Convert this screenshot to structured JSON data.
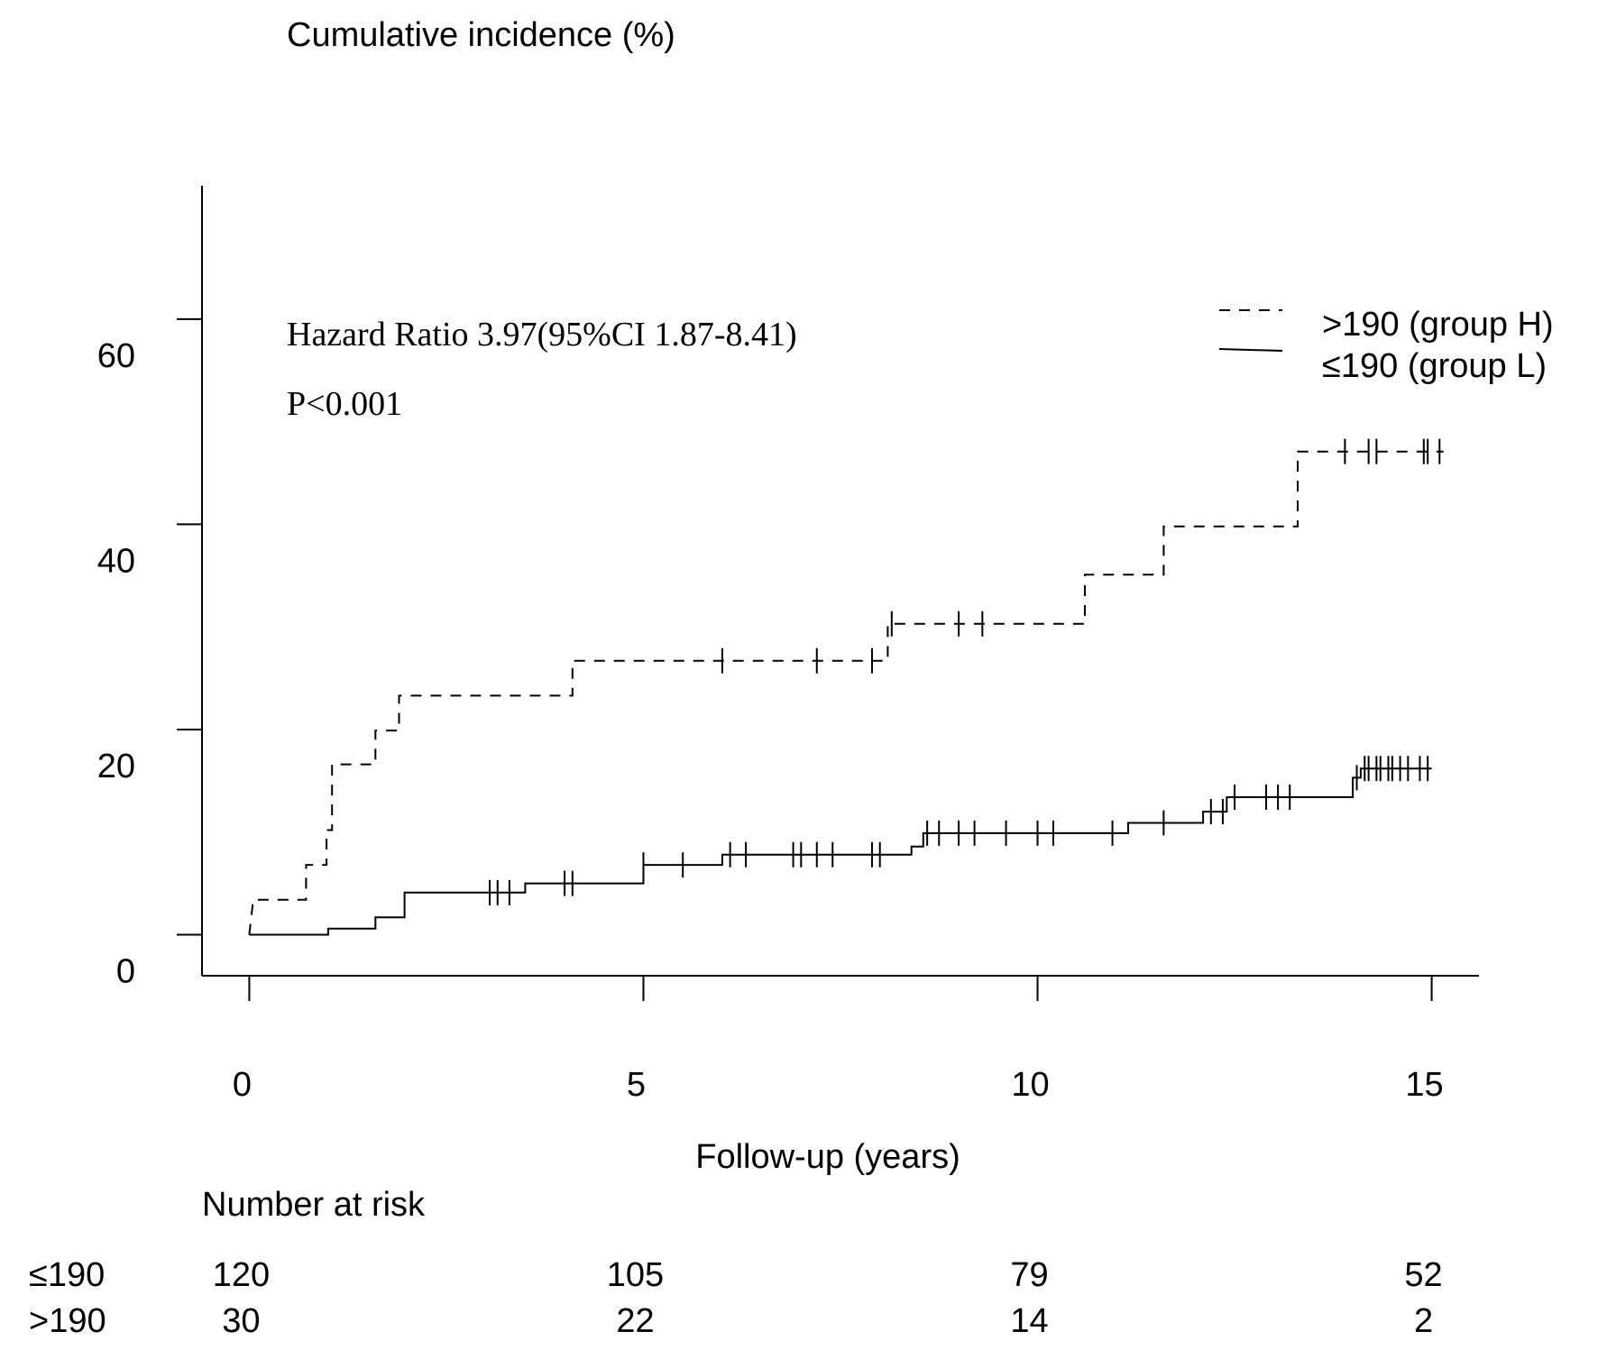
{
  "chart_data": {
    "type": "line",
    "subtype": "kaplan-meier cumulative incidence (step)",
    "ylabel": "Cumulative incidence (%)",
    "xlabel": "Follow-up (years)",
    "x_ticks": [
      "0",
      "5",
      "10",
      "15"
    ],
    "y_ticks": [
      "0",
      "20",
      "40",
      "60"
    ],
    "xlim": [
      -0.6,
      15.6
    ],
    "ylim": [
      -4,
      73
    ],
    "grid": false,
    "legend_position": "top-right",
    "annotations": {
      "hazard_ratio": "Hazard Ratio 3.97(95%CI 1.87-8.41)",
      "p_value": "P<0.001"
    },
    "series": [
      {
        "name": ">190 (group H)",
        "line_style": "dashed",
        "color": "#000000",
        "steps": [
          [
            0,
            0
          ],
          [
            0.05,
            3.4
          ],
          [
            0.72,
            3.4
          ],
          [
            0.72,
            6.8
          ],
          [
            0.98,
            6.8
          ],
          [
            0.98,
            10.2
          ],
          [
            1.05,
            10.2
          ],
          [
            1.05,
            16.6
          ],
          [
            1.6,
            16.6
          ],
          [
            1.6,
            19.9
          ],
          [
            1.9,
            19.9
          ],
          [
            1.9,
            23.3
          ],
          [
            4.1,
            23.3
          ],
          [
            4.1,
            26.7
          ],
          [
            8.1,
            26.7
          ],
          [
            8.1,
            30.3
          ],
          [
            10.6,
            30.3
          ],
          [
            10.6,
            35.1
          ],
          [
            11.6,
            35.1
          ],
          [
            11.6,
            39.8
          ],
          [
            13.3,
            39.8
          ],
          [
            13.3,
            47.1
          ],
          [
            15.15,
            47.1
          ]
        ],
        "censor_times": [
          6.0,
          7.2,
          7.9,
          8.15,
          9.0,
          9.3,
          13.9,
          14.2,
          14.3,
          14.9,
          14.95,
          15.1
        ]
      },
      {
        "name": "≤190 (group L)",
        "line_style": "solid",
        "color": "#000000",
        "steps": [
          [
            0,
            0
          ],
          [
            1.0,
            0
          ],
          [
            1.0,
            0.6
          ],
          [
            1.6,
            0.6
          ],
          [
            1.6,
            1.7
          ],
          [
            1.97,
            1.7
          ],
          [
            1.97,
            4.1
          ],
          [
            3.5,
            4.1
          ],
          [
            3.5,
            5.0
          ],
          [
            5.0,
            5.0
          ],
          [
            5.0,
            6.8
          ],
          [
            6.0,
            6.8
          ],
          [
            6.0,
            7.8
          ],
          [
            8.4,
            7.8
          ],
          [
            8.4,
            8.6
          ],
          [
            8.55,
            8.6
          ],
          [
            8.55,
            9.9
          ],
          [
            11.15,
            9.9
          ],
          [
            11.15,
            10.9
          ],
          [
            12.1,
            10.9
          ],
          [
            12.1,
            12.0
          ],
          [
            12.4,
            12.0
          ],
          [
            12.4,
            13.4
          ],
          [
            14.0,
            13.4
          ],
          [
            14.0,
            15.3
          ],
          [
            14.1,
            15.3
          ],
          [
            14.1,
            16.2
          ],
          [
            15.0,
            16.2
          ]
        ],
        "censor_times": [
          3.05,
          3.15,
          3.3,
          4.0,
          4.1,
          5.0,
          5.5,
          6.1,
          6.3,
          6.9,
          7.0,
          7.2,
          7.4,
          7.9,
          8.0,
          8.6,
          8.75,
          9.0,
          9.2,
          9.6,
          10.0,
          10.2,
          10.95,
          11.6,
          12.2,
          12.35,
          12.5,
          12.9,
          13.05,
          13.2,
          14.05,
          14.15,
          14.2,
          14.3,
          14.35,
          14.45,
          14.5,
          14.6,
          14.7,
          14.85,
          14.95
        ]
      }
    ],
    "risk_table": {
      "title": "Number at risk",
      "rows": [
        {
          "label": "≤190",
          "values": [
            "120",
            "105",
            "79",
            "52"
          ]
        },
        {
          "label": ">190",
          "values": [
            "30",
            "22",
            "14",
            "2"
          ]
        }
      ]
    }
  }
}
